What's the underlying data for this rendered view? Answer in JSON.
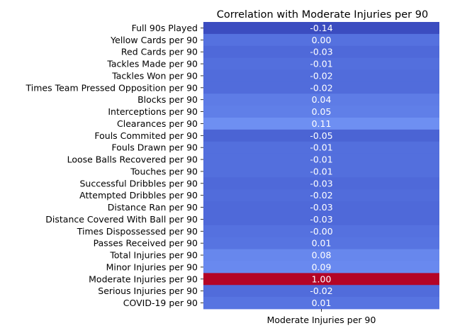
{
  "chart_data": {
    "type": "heatmap",
    "title": "Correlation with Moderate Injuries per 90",
    "xlabel": "",
    "ylabel": "",
    "columns": [
      "Moderate Injuries per 90"
    ],
    "rows": [
      "Full 90s Played",
      "Yellow Cards per 90",
      "Red Cards  per 90",
      "Tackles Made per 90",
      "Tackles Won per 90",
      "Times Team Pressed Opposition per 90",
      "Blocks  per 90",
      "Interceptions per 90",
      "Clearances per 90",
      "Fouls Commited per 90",
      "Fouls Drawn per 90",
      "Loose Balls Recovered per 90",
      "Touches per 90",
      "Successful Dribbles per 90",
      "Attempted Dribbles per 90",
      "Distance Ran per 90",
      "Distance Covered With Ball per 90",
      "Times Dispossessed per 90",
      "Passes Received per 90",
      "Total Injuries per 90",
      "Minor Injuries per 90",
      "Moderate Injuries per 90",
      "Serious Injuries per 90",
      "COVID-19 per 90"
    ],
    "labels": [
      "-0.14",
      "0.00",
      "-0.03",
      "-0.01",
      "-0.02",
      "-0.02",
      "0.04",
      "0.05",
      "0.11",
      "-0.05",
      "-0.01",
      "-0.01",
      "-0.01",
      "-0.03",
      "-0.02",
      "-0.03",
      "-0.03",
      "-0.00",
      "0.01",
      "0.08",
      "0.09",
      "1.00",
      "-0.02",
      "0.01"
    ],
    "values": [
      -0.14,
      0.0,
      -0.03,
      -0.01,
      -0.02,
      -0.02,
      0.04,
      0.05,
      0.11,
      -0.05,
      -0.01,
      -0.01,
      -0.01,
      -0.03,
      -0.02,
      -0.03,
      -0.03,
      0.0,
      0.01,
      0.08,
      0.09,
      1.0,
      -0.02,
      0.01
    ],
    "colormap": "coolwarm",
    "colorbar": false,
    "grid": false
  }
}
